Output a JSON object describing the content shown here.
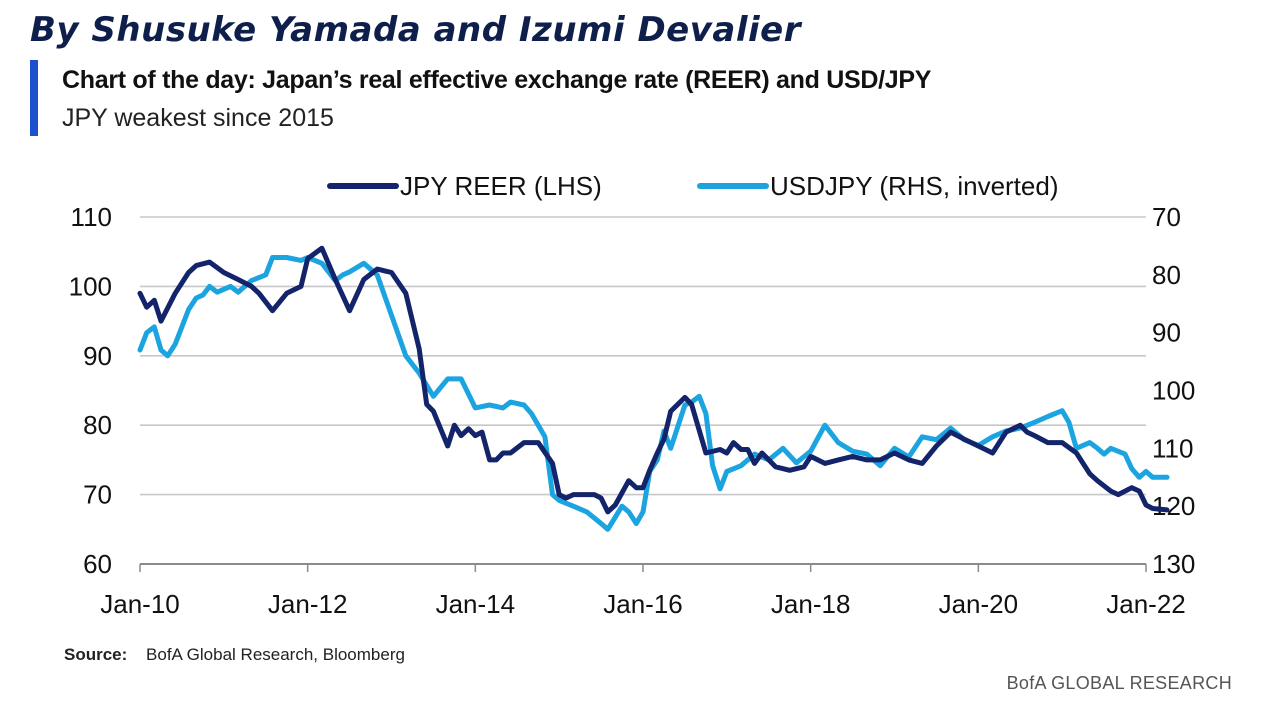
{
  "header": {
    "authors": "By Shusuke Yamada and Izumi Devalier",
    "title": "Chart of the day: Japan’s real effective exchange rate (REER) and USD/JPY",
    "subtitle": "JPY weakest since 2015"
  },
  "chart_data": {
    "type": "line",
    "x_ticks": [
      "Jan-10",
      "Jan-12",
      "Jan-14",
      "Jan-16",
      "Jan-18",
      "Jan-20",
      "Jan-22"
    ],
    "x_range": [
      "Jan-10",
      "Jan-22"
    ],
    "left_axis": {
      "ticks": [
        60,
        70,
        80,
        90,
        100,
        110
      ],
      "range": [
        60,
        110
      ]
    },
    "right_axis": {
      "ticks": [
        70,
        80,
        90,
        100,
        110,
        120,
        130
      ],
      "range": [
        130,
        70
      ],
      "inverted": true
    },
    "grid": true,
    "legend_position": "top",
    "series": [
      {
        "name": "JPY REER (LHS)",
        "axis": "left",
        "color": "#13246b",
        "points": [
          [
            2010.0,
            99
          ],
          [
            2010.08,
            97
          ],
          [
            2010.17,
            98
          ],
          [
            2010.25,
            95
          ],
          [
            2010.42,
            99
          ],
          [
            2010.58,
            102
          ],
          [
            2010.67,
            103
          ],
          [
            2010.83,
            103.5
          ],
          [
            2011.0,
            102
          ],
          [
            2011.17,
            101
          ],
          [
            2011.33,
            100
          ],
          [
            2011.42,
            99
          ],
          [
            2011.58,
            96.5
          ],
          [
            2011.75,
            99
          ],
          [
            2011.92,
            100
          ],
          [
            2012.0,
            104
          ],
          [
            2012.17,
            105.5
          ],
          [
            2012.33,
            101
          ],
          [
            2012.5,
            96.5
          ],
          [
            2012.67,
            101
          ],
          [
            2012.83,
            102.5
          ],
          [
            2013.0,
            102
          ],
          [
            2013.17,
            99
          ],
          [
            2013.33,
            91
          ],
          [
            2013.42,
            83
          ],
          [
            2013.5,
            82
          ],
          [
            2013.67,
            77
          ],
          [
            2013.75,
            80
          ],
          [
            2013.83,
            78.5
          ],
          [
            2013.92,
            79.5
          ],
          [
            2014.0,
            78.5
          ],
          [
            2014.08,
            79
          ],
          [
            2014.17,
            75
          ],
          [
            2014.25,
            75
          ],
          [
            2014.33,
            76
          ],
          [
            2014.42,
            76
          ],
          [
            2014.58,
            77.5
          ],
          [
            2014.75,
            77.5
          ],
          [
            2014.92,
            74.5
          ],
          [
            2015.0,
            70
          ],
          [
            2015.08,
            69.5
          ],
          [
            2015.17,
            70
          ],
          [
            2015.33,
            70
          ],
          [
            2015.42,
            70
          ],
          [
            2015.5,
            69.5
          ],
          [
            2015.58,
            67.5
          ],
          [
            2015.67,
            68.5
          ],
          [
            2015.83,
            72
          ],
          [
            2015.92,
            71
          ],
          [
            2016.0,
            71
          ],
          [
            2016.08,
            73.5
          ],
          [
            2016.17,
            76
          ],
          [
            2016.25,
            78
          ],
          [
            2016.33,
            82
          ],
          [
            2016.5,
            84
          ],
          [
            2016.58,
            83
          ],
          [
            2016.75,
            76
          ],
          [
            2016.92,
            76.5
          ],
          [
            2017.0,
            76
          ],
          [
            2017.08,
            77.5
          ],
          [
            2017.17,
            76.5
          ],
          [
            2017.25,
            76.5
          ],
          [
            2017.33,
            74.5
          ],
          [
            2017.42,
            76
          ],
          [
            2017.5,
            75
          ],
          [
            2017.58,
            74
          ],
          [
            2017.75,
            73.5
          ],
          [
            2017.92,
            74
          ],
          [
            2018.0,
            75.5
          ],
          [
            2018.17,
            74.5
          ],
          [
            2018.33,
            75
          ],
          [
            2018.5,
            75.5
          ],
          [
            2018.67,
            75
          ],
          [
            2018.83,
            75
          ],
          [
            2019.0,
            76
          ],
          [
            2019.17,
            75
          ],
          [
            2019.33,
            74.5
          ],
          [
            2019.5,
            77
          ],
          [
            2019.67,
            79
          ],
          [
            2019.83,
            78
          ],
          [
            2020.0,
            77
          ],
          [
            2020.17,
            76
          ],
          [
            2020.33,
            79
          ],
          [
            2020.5,
            80
          ],
          [
            2020.58,
            79
          ],
          [
            2020.67,
            78.5
          ],
          [
            2020.83,
            77.5
          ],
          [
            2021.0,
            77.5
          ],
          [
            2021.17,
            76
          ],
          [
            2021.33,
            73
          ],
          [
            2021.42,
            72
          ],
          [
            2021.58,
            70.5
          ],
          [
            2021.67,
            70
          ],
          [
            2021.83,
            71
          ],
          [
            2021.92,
            70.5
          ],
          [
            2022.0,
            68.5
          ],
          [
            2022.08,
            68
          ],
          [
            2022.25,
            67.8
          ]
        ]
      },
      {
        "name": "USDJPY (RHS, inverted)",
        "axis": "right",
        "color": "#1ca4e0",
        "points": [
          [
            2010.0,
            93
          ],
          [
            2010.08,
            90
          ],
          [
            2010.17,
            89
          ],
          [
            2010.25,
            93
          ],
          [
            2010.33,
            94
          ],
          [
            2010.42,
            92
          ],
          [
            2010.5,
            89
          ],
          [
            2010.58,
            86
          ],
          [
            2010.67,
            84
          ],
          [
            2010.75,
            83.5
          ],
          [
            2010.83,
            82
          ],
          [
            2010.92,
            83
          ],
          [
            2011.0,
            82.5
          ],
          [
            2011.08,
            82
          ],
          [
            2011.17,
            83
          ],
          [
            2011.33,
            81
          ],
          [
            2011.5,
            80
          ],
          [
            2011.58,
            77
          ],
          [
            2011.75,
            77
          ],
          [
            2011.92,
            77.5
          ],
          [
            2012.0,
            77
          ],
          [
            2012.17,
            78
          ],
          [
            2012.33,
            81
          ],
          [
            2012.42,
            80
          ],
          [
            2012.5,
            79.5
          ],
          [
            2012.67,
            78
          ],
          [
            2012.83,
            80
          ],
          [
            2013.0,
            87
          ],
          [
            2013.17,
            94
          ],
          [
            2013.33,
            97
          ],
          [
            2013.5,
            101
          ],
          [
            2013.67,
            98
          ],
          [
            2013.83,
            98
          ],
          [
            2014.0,
            103
          ],
          [
            2014.17,
            102.5
          ],
          [
            2014.33,
            103
          ],
          [
            2014.42,
            102
          ],
          [
            2014.58,
            102.5
          ],
          [
            2014.67,
            104
          ],
          [
            2014.83,
            108
          ],
          [
            2014.92,
            118
          ],
          [
            2015.0,
            119
          ],
          [
            2015.17,
            120
          ],
          [
            2015.33,
            121
          ],
          [
            2015.5,
            123
          ],
          [
            2015.58,
            124
          ],
          [
            2015.75,
            120
          ],
          [
            2015.83,
            121
          ],
          [
            2015.92,
            123
          ],
          [
            2016.0,
            121
          ],
          [
            2016.08,
            114
          ],
          [
            2016.17,
            112
          ],
          [
            2016.25,
            107
          ],
          [
            2016.33,
            110
          ],
          [
            2016.5,
            102.5
          ],
          [
            2016.58,
            102
          ],
          [
            2016.67,
            101
          ],
          [
            2016.75,
            104
          ],
          [
            2016.83,
            113
          ],
          [
            2016.92,
            117
          ],
          [
            2017.0,
            114
          ],
          [
            2017.17,
            113
          ],
          [
            2017.33,
            111
          ],
          [
            2017.5,
            112
          ],
          [
            2017.67,
            110
          ],
          [
            2017.83,
            112.5
          ],
          [
            2018.0,
            110.5
          ],
          [
            2018.17,
            106
          ],
          [
            2018.33,
            109
          ],
          [
            2018.5,
            110.5
          ],
          [
            2018.67,
            111
          ],
          [
            2018.83,
            113
          ],
          [
            2019.0,
            110
          ],
          [
            2019.17,
            111.5
          ],
          [
            2019.33,
            108
          ],
          [
            2019.5,
            108.5
          ],
          [
            2019.67,
            106.5
          ],
          [
            2019.83,
            108.5
          ],
          [
            2020.0,
            109.5
          ],
          [
            2020.17,
            108
          ],
          [
            2020.33,
            107
          ],
          [
            2020.5,
            106.5
          ],
          [
            2020.67,
            105.5
          ],
          [
            2020.83,
            104.5
          ],
          [
            2021.0,
            103.5
          ],
          [
            2021.08,
            105.5
          ],
          [
            2021.17,
            110
          ],
          [
            2021.33,
            109
          ],
          [
            2021.42,
            110
          ],
          [
            2021.5,
            111
          ],
          [
            2021.58,
            110
          ],
          [
            2021.75,
            111
          ],
          [
            2021.83,
            113.5
          ],
          [
            2021.92,
            115
          ],
          [
            2022.0,
            114
          ],
          [
            2022.08,
            115
          ],
          [
            2022.25,
            115
          ]
        ]
      }
    ]
  },
  "source": {
    "label": "Source:",
    "text": "BofA Global Research, Bloomberg"
  },
  "brand": "BofA GLOBAL RESEARCH"
}
